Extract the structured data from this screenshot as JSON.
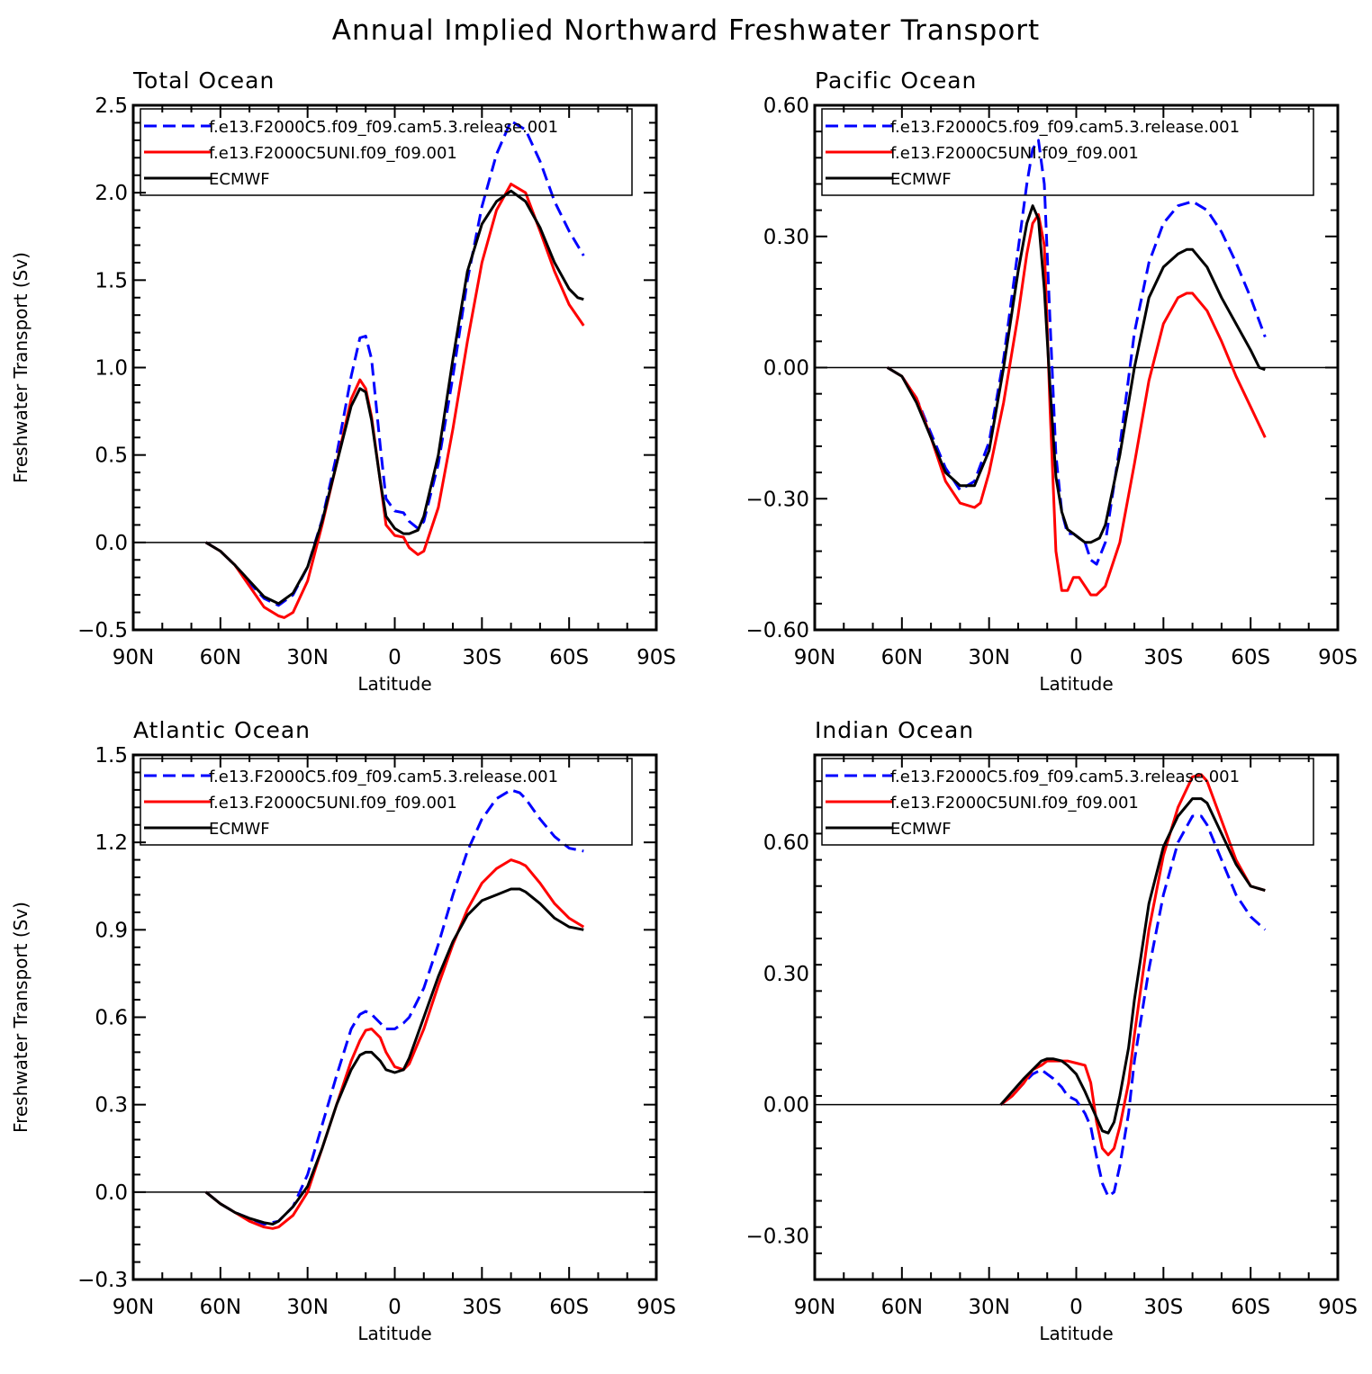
{
  "figure_title": "Annual Implied Northward Freshwater Transport",
  "legend_entries": [
    {
      "name": "f.e13.F2000C5.f09_f09.cam5.3.release.001",
      "color": "#0000ff",
      "style": "dashed"
    },
    {
      "name": "f.e13.F2000C5UNI.f09_f09.001",
      "color": "#ff0000",
      "style": "solid"
    },
    {
      "name": "ECMWF",
      "color": "#000000",
      "style": "solid"
    }
  ],
  "chart_data": [
    {
      "type": "line",
      "title": "Total Ocean",
      "xlabel": "Latitude",
      "ylabel": "Freshwater Transport (Sv)",
      "xlim": [
        90,
        -90
      ],
      "x_ticks": [
        90,
        60,
        30,
        0,
        -30,
        -60,
        -90
      ],
      "x_tick_labels": [
        "90N",
        "60N",
        "30N",
        "0",
        "30S",
        "60S",
        "90S"
      ],
      "ylim": [
        -0.5,
        2.5
      ],
      "y_ticks": [
        -0.5,
        0.0,
        0.5,
        1.0,
        1.5,
        2.0,
        2.5
      ],
      "y_tick_labels": [
        "−0.5",
        "0.0",
        "0.5",
        "1.0",
        "1.5",
        "2.0",
        "2.5"
      ],
      "legend_position": "top",
      "series": [
        {
          "name": "f.e13.F2000C5.f09_f09.cam5.3.release.001",
          "color": "#0000ff",
          "dash": true,
          "x": [
            65,
            60,
            55,
            50,
            45,
            40,
            35,
            30,
            25,
            20,
            15,
            12,
            10,
            8,
            5,
            3,
            0,
            -3,
            -5,
            -8,
            -10,
            -15,
            -20,
            -25,
            -30,
            -35,
            -40,
            -45,
            -50,
            -55,
            -60,
            -65
          ],
          "y": [
            0.0,
            -0.05,
            -0.13,
            -0.23,
            -0.32,
            -0.36,
            -0.3,
            -0.14,
            0.13,
            0.5,
            0.95,
            1.17,
            1.18,
            1.05,
            0.55,
            0.25,
            0.18,
            0.17,
            0.12,
            0.08,
            0.12,
            0.45,
            0.95,
            1.5,
            1.92,
            2.22,
            2.41,
            2.36,
            2.18,
            1.95,
            1.78,
            1.64
          ]
        },
        {
          "name": "f.e13.F2000C5UNI.f09_f09.001",
          "color": "#ff0000",
          "dash": false,
          "x": [
            65,
            60,
            55,
            50,
            45,
            40,
            38,
            35,
            30,
            25,
            20,
            15,
            12,
            10,
            8,
            5,
            3,
            0,
            -3,
            -5,
            -8,
            -10,
            -15,
            -20,
            -25,
            -30,
            -35,
            -40,
            -45,
            -50,
            -55,
            -60,
            -65
          ],
          "y": [
            0.0,
            -0.05,
            -0.13,
            -0.25,
            -0.37,
            -0.42,
            -0.43,
            -0.4,
            -0.22,
            0.1,
            0.45,
            0.82,
            0.93,
            0.88,
            0.72,
            0.35,
            0.1,
            0.04,
            0.03,
            -0.03,
            -0.07,
            -0.05,
            0.2,
            0.65,
            1.15,
            1.6,
            1.9,
            2.05,
            2.0,
            1.78,
            1.55,
            1.36,
            1.24
          ]
        },
        {
          "name": "ECMWF",
          "color": "#000000",
          "dash": false,
          "x": [
            65,
            60,
            55,
            50,
            45,
            40,
            35,
            30,
            25,
            20,
            15,
            12,
            10,
            8,
            5,
            3,
            0,
            -3,
            -5,
            -8,
            -10,
            -15,
            -20,
            -25,
            -30,
            -35,
            -40,
            -45,
            -50,
            -55,
            -60,
            -63,
            -65
          ],
          "y": [
            0.0,
            -0.05,
            -0.13,
            -0.22,
            -0.31,
            -0.35,
            -0.29,
            -0.14,
            0.12,
            0.45,
            0.78,
            0.88,
            0.86,
            0.7,
            0.35,
            0.15,
            0.08,
            0.05,
            0.05,
            0.07,
            0.15,
            0.5,
            1.05,
            1.55,
            1.82,
            1.95,
            2.01,
            1.95,
            1.8,
            1.6,
            1.45,
            1.4,
            1.39
          ]
        }
      ]
    },
    {
      "type": "line",
      "title": "Pacific Ocean",
      "xlabel": "Latitude",
      "ylabel": "",
      "xlim": [
        90,
        -90
      ],
      "x_ticks": [
        90,
        60,
        30,
        0,
        -30,
        -60,
        -90
      ],
      "x_tick_labels": [
        "90N",
        "60N",
        "30N",
        "0",
        "30S",
        "60S",
        "90S"
      ],
      "ylim": [
        -0.6,
        0.6
      ],
      "y_ticks": [
        -0.6,
        -0.3,
        0.0,
        0.3,
        0.6
      ],
      "y_tick_labels": [
        "−0.60",
        "−0.30",
        "0.00",
        "0.30",
        "0.60"
      ],
      "legend_position": "top",
      "series": [
        {
          "name": "f.e13.F2000C5.f09_f09.cam5.3.release.001",
          "color": "#0000ff",
          "dash": true,
          "x": [
            65,
            60,
            55,
            50,
            45,
            40,
            35,
            30,
            25,
            20,
            17,
            15,
            13,
            11,
            9,
            7,
            5,
            3,
            1,
            -1,
            -3,
            -5,
            -7,
            -10,
            -15,
            -20,
            -25,
            -30,
            -35,
            -40,
            -45,
            -50,
            -55,
            -60,
            -65
          ],
          "y": [
            0.0,
            -0.02,
            -0.07,
            -0.15,
            -0.23,
            -0.28,
            -0.26,
            -0.17,
            0.02,
            0.27,
            0.42,
            0.5,
            0.52,
            0.42,
            0.1,
            -0.2,
            -0.33,
            -0.38,
            -0.38,
            -0.39,
            -0.4,
            -0.44,
            -0.45,
            -0.4,
            -0.18,
            0.08,
            0.24,
            0.33,
            0.37,
            0.38,
            0.36,
            0.31,
            0.24,
            0.16,
            0.07
          ]
        },
        {
          "name": "f.e13.F2000C5UNI.f09_f09.001",
          "color": "#ff0000",
          "dash": false,
          "x": [
            65,
            60,
            55,
            50,
            45,
            40,
            35,
            33,
            30,
            25,
            20,
            17,
            15,
            13,
            11,
            9,
            7,
            5,
            3,
            1,
            -1,
            -3,
            -5,
            -7,
            -10,
            -15,
            -20,
            -25,
            -30,
            -35,
            -38,
            -40,
            -45,
            -50,
            -55,
            -60,
            -65
          ],
          "y": [
            0.0,
            -0.02,
            -0.07,
            -0.16,
            -0.26,
            -0.31,
            -0.32,
            -0.31,
            -0.24,
            -0.08,
            0.12,
            0.26,
            0.33,
            0.35,
            0.28,
            -0.1,
            -0.42,
            -0.51,
            -0.51,
            -0.48,
            -0.48,
            -0.5,
            -0.52,
            -0.52,
            -0.5,
            -0.4,
            -0.22,
            -0.03,
            0.1,
            0.16,
            0.17,
            0.17,
            0.13,
            0.06,
            -0.02,
            -0.09,
            -0.16
          ]
        },
        {
          "name": "ECMWF",
          "color": "#000000",
          "dash": false,
          "x": [
            65,
            60,
            55,
            50,
            45,
            40,
            35,
            30,
            25,
            20,
            17,
            15,
            13,
            11,
            9,
            7,
            5,
            3,
            1,
            -1,
            -3,
            -5,
            -8,
            -10,
            -15,
            -20,
            -25,
            -30,
            -35,
            -38,
            -40,
            -45,
            -50,
            -55,
            -60,
            -63,
            -65
          ],
          "y": [
            0.0,
            -0.02,
            -0.08,
            -0.16,
            -0.24,
            -0.27,
            -0.27,
            -0.19,
            0.0,
            0.22,
            0.33,
            0.37,
            0.34,
            0.18,
            -0.05,
            -0.25,
            -0.33,
            -0.37,
            -0.38,
            -0.39,
            -0.4,
            -0.4,
            -0.39,
            -0.36,
            -0.2,
            0.0,
            0.16,
            0.23,
            0.26,
            0.27,
            0.27,
            0.23,
            0.16,
            0.1,
            0.04,
            0.0,
            -0.005
          ]
        }
      ]
    },
    {
      "type": "line",
      "title": "Atlantic Ocean",
      "xlabel": "Latitude",
      "ylabel": "Freshwater Transport (Sv)",
      "xlim": [
        90,
        -90
      ],
      "x_ticks": [
        90,
        60,
        30,
        0,
        -30,
        -60,
        -90
      ],
      "x_tick_labels": [
        "90N",
        "60N",
        "30N",
        "0",
        "30S",
        "60S",
        "90S"
      ],
      "ylim": [
        -0.3,
        1.5
      ],
      "y_ticks": [
        -0.3,
        0.0,
        0.3,
        0.6,
        0.9,
        1.2,
        1.5
      ],
      "y_tick_labels": [
        "−0.3",
        "0.0",
        "0.3",
        "0.6",
        "0.9",
        "1.2",
        "1.5"
      ],
      "legend_position": "top",
      "series": [
        {
          "name": "f.e13.F2000C5.f09_f09.cam5.3.release.001",
          "color": "#0000ff",
          "dash": true,
          "x": [
            65,
            60,
            55,
            50,
            45,
            40,
            35,
            30,
            25,
            20,
            15,
            12,
            10,
            8,
            5,
            3,
            0,
            -3,
            -5,
            -10,
            -15,
            -20,
            -25,
            -30,
            -35,
            -40,
            -43,
            -45,
            -50,
            -55,
            -60,
            -65
          ],
          "y": [
            0.0,
            -0.04,
            -0.07,
            -0.09,
            -0.11,
            -0.1,
            -0.05,
            0.06,
            0.23,
            0.4,
            0.56,
            0.61,
            0.62,
            0.61,
            0.58,
            0.56,
            0.56,
            0.58,
            0.6,
            0.7,
            0.85,
            1.02,
            1.17,
            1.28,
            1.35,
            1.38,
            1.37,
            1.35,
            1.28,
            1.22,
            1.18,
            1.17
          ]
        },
        {
          "name": "f.e13.F2000C5UNI.f09_f09.001",
          "color": "#ff0000",
          "dash": false,
          "x": [
            65,
            60,
            55,
            50,
            45,
            42,
            40,
            35,
            30,
            25,
            20,
            15,
            12,
            10,
            8,
            5,
            3,
            0,
            -3,
            -5,
            -10,
            -15,
            -20,
            -25,
            -30,
            -35,
            -40,
            -43,
            -45,
            -50,
            -55,
            -60,
            -65
          ],
          "y": [
            0.0,
            -0.04,
            -0.07,
            -0.1,
            -0.12,
            -0.125,
            -0.12,
            -0.08,
            0.0,
            0.15,
            0.3,
            0.45,
            0.52,
            0.555,
            0.56,
            0.53,
            0.48,
            0.43,
            0.42,
            0.44,
            0.56,
            0.71,
            0.85,
            0.97,
            1.06,
            1.11,
            1.14,
            1.13,
            1.12,
            1.06,
            0.99,
            0.94,
            0.91
          ]
        },
        {
          "name": "ECMWF",
          "color": "#000000",
          "dash": false,
          "x": [
            65,
            60,
            55,
            50,
            45,
            42,
            40,
            35,
            30,
            25,
            20,
            15,
            12,
            10,
            8,
            5,
            3,
            0,
            -3,
            -5,
            -10,
            -15,
            -20,
            -25,
            -30,
            -35,
            -40,
            -43,
            -45,
            -50,
            -55,
            -60,
            -65
          ],
          "y": [
            0.0,
            -0.04,
            -0.07,
            -0.09,
            -0.105,
            -0.11,
            -0.1,
            -0.05,
            0.02,
            0.15,
            0.3,
            0.42,
            0.47,
            0.48,
            0.48,
            0.45,
            0.42,
            0.41,
            0.42,
            0.46,
            0.6,
            0.74,
            0.86,
            0.95,
            1.0,
            1.02,
            1.04,
            1.04,
            1.03,
            0.99,
            0.94,
            0.91,
            0.9
          ]
        }
      ]
    },
    {
      "type": "line",
      "title": "Indian Ocean",
      "xlabel": "Latitude",
      "ylabel": "",
      "xlim": [
        90,
        -90
      ],
      "x_ticks": [
        90,
        60,
        30,
        0,
        -30,
        -60,
        -90
      ],
      "x_tick_labels": [
        "90N",
        "60N",
        "30N",
        "0",
        "30S",
        "60S",
        "90S"
      ],
      "ylim": [
        -0.4,
        0.8
      ],
      "y_ticks": [
        -0.3,
        0.0,
        0.3,
        0.6
      ],
      "y_tick_labels": [
        "−0.30",
        "0.00",
        "0.30",
        "0.60"
      ],
      "legend_position": "top",
      "series": [
        {
          "name": "f.e13.F2000C5.f09_f09.cam5.3.release.001",
          "color": "#0000ff",
          "dash": true,
          "x": [
            26,
            22,
            18,
            15,
            12,
            10,
            8,
            5,
            3,
            0,
            -3,
            -5,
            -7,
            -9,
            -11,
            -13,
            -15,
            -18,
            -20,
            -25,
            -30,
            -35,
            -40,
            -43,
            -45,
            -50,
            -55,
            -60,
            -65
          ],
          "y": [
            0.0,
            0.02,
            0.05,
            0.07,
            0.08,
            0.07,
            0.06,
            0.04,
            0.02,
            0.01,
            -0.02,
            -0.05,
            -0.12,
            -0.18,
            -0.21,
            -0.2,
            -0.14,
            -0.02,
            0.1,
            0.31,
            0.48,
            0.6,
            0.66,
            0.66,
            0.64,
            0.56,
            0.48,
            0.43,
            0.4
          ]
        },
        {
          "name": "f.e13.F2000C5UNI.f09_f09.001",
          "color": "#ff0000",
          "dash": false,
          "x": [
            26,
            22,
            18,
            15,
            12,
            10,
            8,
            5,
            3,
            0,
            -3,
            -5,
            -7,
            -9,
            -11,
            -13,
            -15,
            -18,
            -20,
            -25,
            -30,
            -35,
            -40,
            -43,
            -45,
            -50,
            -55,
            -60,
            -65
          ],
          "y": [
            0.0,
            0.02,
            0.05,
            0.08,
            0.09,
            0.1,
            0.1,
            0.1,
            0.1,
            0.095,
            0.09,
            0.05,
            -0.04,
            -0.1,
            -0.115,
            -0.1,
            -0.05,
            0.05,
            0.16,
            0.4,
            0.57,
            0.68,
            0.75,
            0.755,
            0.74,
            0.65,
            0.56,
            0.5,
            0.49
          ]
        },
        {
          "name": "ECMWF",
          "color": "#000000",
          "dash": false,
          "x": [
            26,
            22,
            18,
            15,
            12,
            10,
            8,
            5,
            3,
            0,
            -3,
            -5,
            -7,
            -9,
            -11,
            -13,
            -15,
            -18,
            -20,
            -25,
            -30,
            -35,
            -40,
            -43,
            -45,
            -50,
            -55,
            -60,
            -65
          ],
          "y": [
            0.0,
            0.03,
            0.06,
            0.08,
            0.1,
            0.105,
            0.105,
            0.1,
            0.09,
            0.07,
            0.03,
            0.0,
            -0.03,
            -0.06,
            -0.065,
            -0.04,
            0.02,
            0.13,
            0.24,
            0.46,
            0.59,
            0.66,
            0.7,
            0.7,
            0.69,
            0.62,
            0.55,
            0.5,
            0.49
          ]
        }
      ]
    }
  ]
}
